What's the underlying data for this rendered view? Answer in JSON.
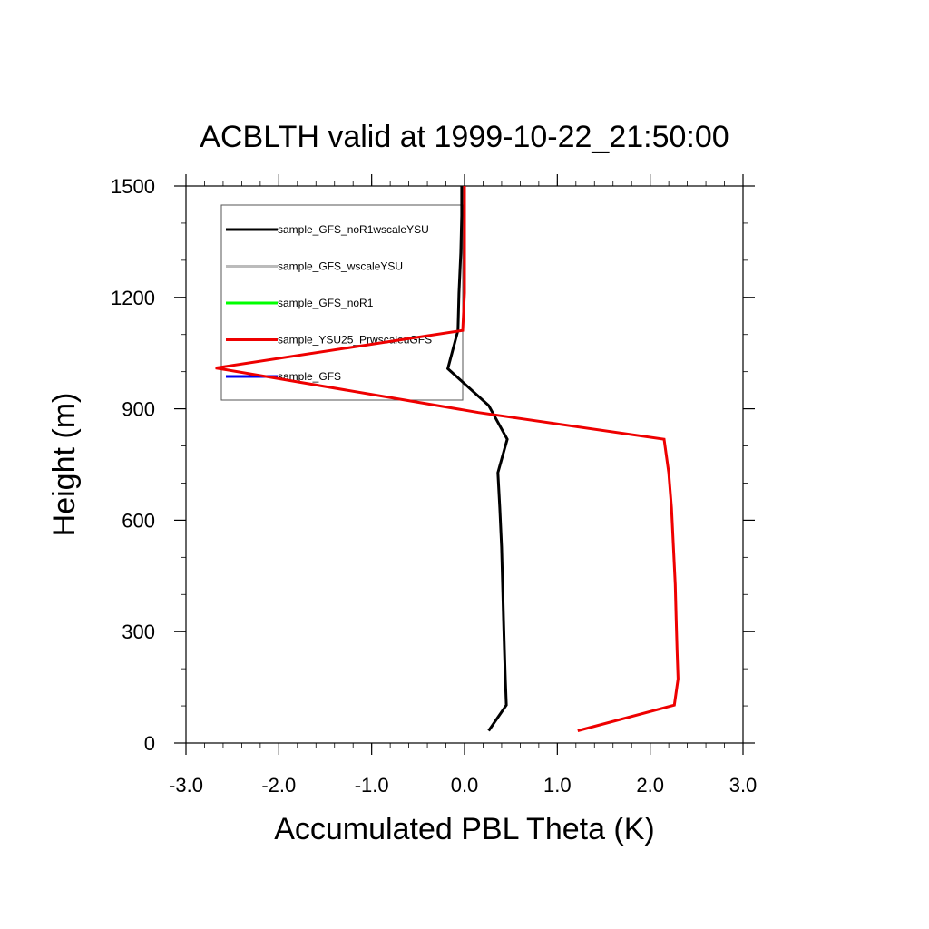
{
  "chart_data": {
    "type": "line",
    "title": "ACBLTH valid at 1999-10-22_21:50:00",
    "xlabel": "Accumulated PBL Theta (K)",
    "ylabel": "Height (m)",
    "xlim": [
      -3.0,
      3.0
    ],
    "ylim": [
      0,
      1500
    ],
    "xticks": [
      {
        "value": -3.0,
        "label": "-3.0"
      },
      {
        "value": -2.0,
        "label": "-2.0"
      },
      {
        "value": -1.0,
        "label": "-1.0"
      },
      {
        "value": 0.0,
        "label": "0.0"
      },
      {
        "value": 1.0,
        "label": "1.0"
      },
      {
        "value": 2.0,
        "label": "2.0"
      },
      {
        "value": 3.0,
        "label": "3.0"
      }
    ],
    "yticks": [
      {
        "value": 0,
        "label": "0"
      },
      {
        "value": 300,
        "label": "300"
      },
      {
        "value": 600,
        "label": "600"
      },
      {
        "value": 900,
        "label": "900"
      },
      {
        "value": 1200,
        "label": "1200"
      },
      {
        "value": 1500,
        "label": "1500"
      }
    ],
    "grid": false,
    "legend_position": "top-left",
    "series": [
      {
        "name": "sample_GFS_noR1wscaleYSU",
        "color": "#000000",
        "points": [
          {
            "x": 0.26,
            "y": 33
          },
          {
            "x": 0.45,
            "y": 102
          },
          {
            "x": 0.44,
            "y": 173
          },
          {
            "x": 0.43,
            "y": 250
          },
          {
            "x": 0.42,
            "y": 335
          },
          {
            "x": 0.41,
            "y": 427
          },
          {
            "x": 0.4,
            "y": 527
          },
          {
            "x": 0.38,
            "y": 633
          },
          {
            "x": 0.36,
            "y": 728
          },
          {
            "x": 0.46,
            "y": 818
          },
          {
            "x": 0.26,
            "y": 909
          },
          {
            "x": -0.18,
            "y": 1008
          },
          {
            "x": -0.07,
            "y": 1111
          },
          {
            "x": -0.06,
            "y": 1212
          },
          {
            "x": -0.04,
            "y": 1320
          },
          {
            "x": -0.03,
            "y": 1420
          },
          {
            "x": -0.03,
            "y": 1500
          }
        ]
      },
      {
        "name": "sample_GFS_wscaleYSU",
        "color": "#bbbbbb",
        "points": []
      },
      {
        "name": "sample_GFS_noR1",
        "color": "#00ff00",
        "points": []
      },
      {
        "name": "sample_YSU25_PrwscaleuGFS",
        "color": "#ee0000",
        "points": [
          {
            "x": 1.22,
            "y": 33
          },
          {
            "x": 2.26,
            "y": 102
          },
          {
            "x": 2.3,
            "y": 173
          },
          {
            "x": 2.29,
            "y": 250
          },
          {
            "x": 2.28,
            "y": 335
          },
          {
            "x": 2.27,
            "y": 427
          },
          {
            "x": 2.25,
            "y": 527
          },
          {
            "x": 2.23,
            "y": 633
          },
          {
            "x": 2.2,
            "y": 728
          },
          {
            "x": 2.15,
            "y": 818
          },
          {
            "x": 0.15,
            "y": 890
          },
          {
            "x": -2.68,
            "y": 1010
          },
          {
            "x": -0.02,
            "y": 1111
          },
          {
            "x": 0.0,
            "y": 1212
          },
          {
            "x": 0.0,
            "y": 1320
          },
          {
            "x": 0.0,
            "y": 1420
          },
          {
            "x": 0.0,
            "y": 1500
          }
        ]
      },
      {
        "name": "sample_GFS",
        "color": "#0000ee",
        "points": []
      }
    ]
  }
}
